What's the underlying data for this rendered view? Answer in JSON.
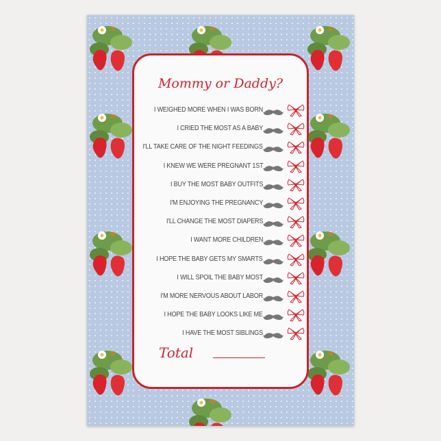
{
  "title": "Mommy or Daddy?",
  "questions": [
    "I weighed more when I was born",
    "I cried the most as a baby",
    "I'll take care of the night feedings",
    "I knew we were pregnant 1st",
    "I buy the most baby outfits",
    "I'm enjoying the pregnancy",
    "I'll change the most diapers",
    "I want more children",
    "I hope the baby gets my smarts",
    "I will spoil the baby most",
    "I'm more nervous about labor",
    "I hope the baby looks like me",
    "I have the most siblings"
  ],
  "total_label": "Total",
  "icons": {
    "daddy": "mustache-icon",
    "mommy": "bow-icon",
    "decoration": "strawberry-cluster"
  },
  "colors": {
    "accent": "#c8232c",
    "background": "#b9c9e2",
    "mustache": "#777777"
  }
}
